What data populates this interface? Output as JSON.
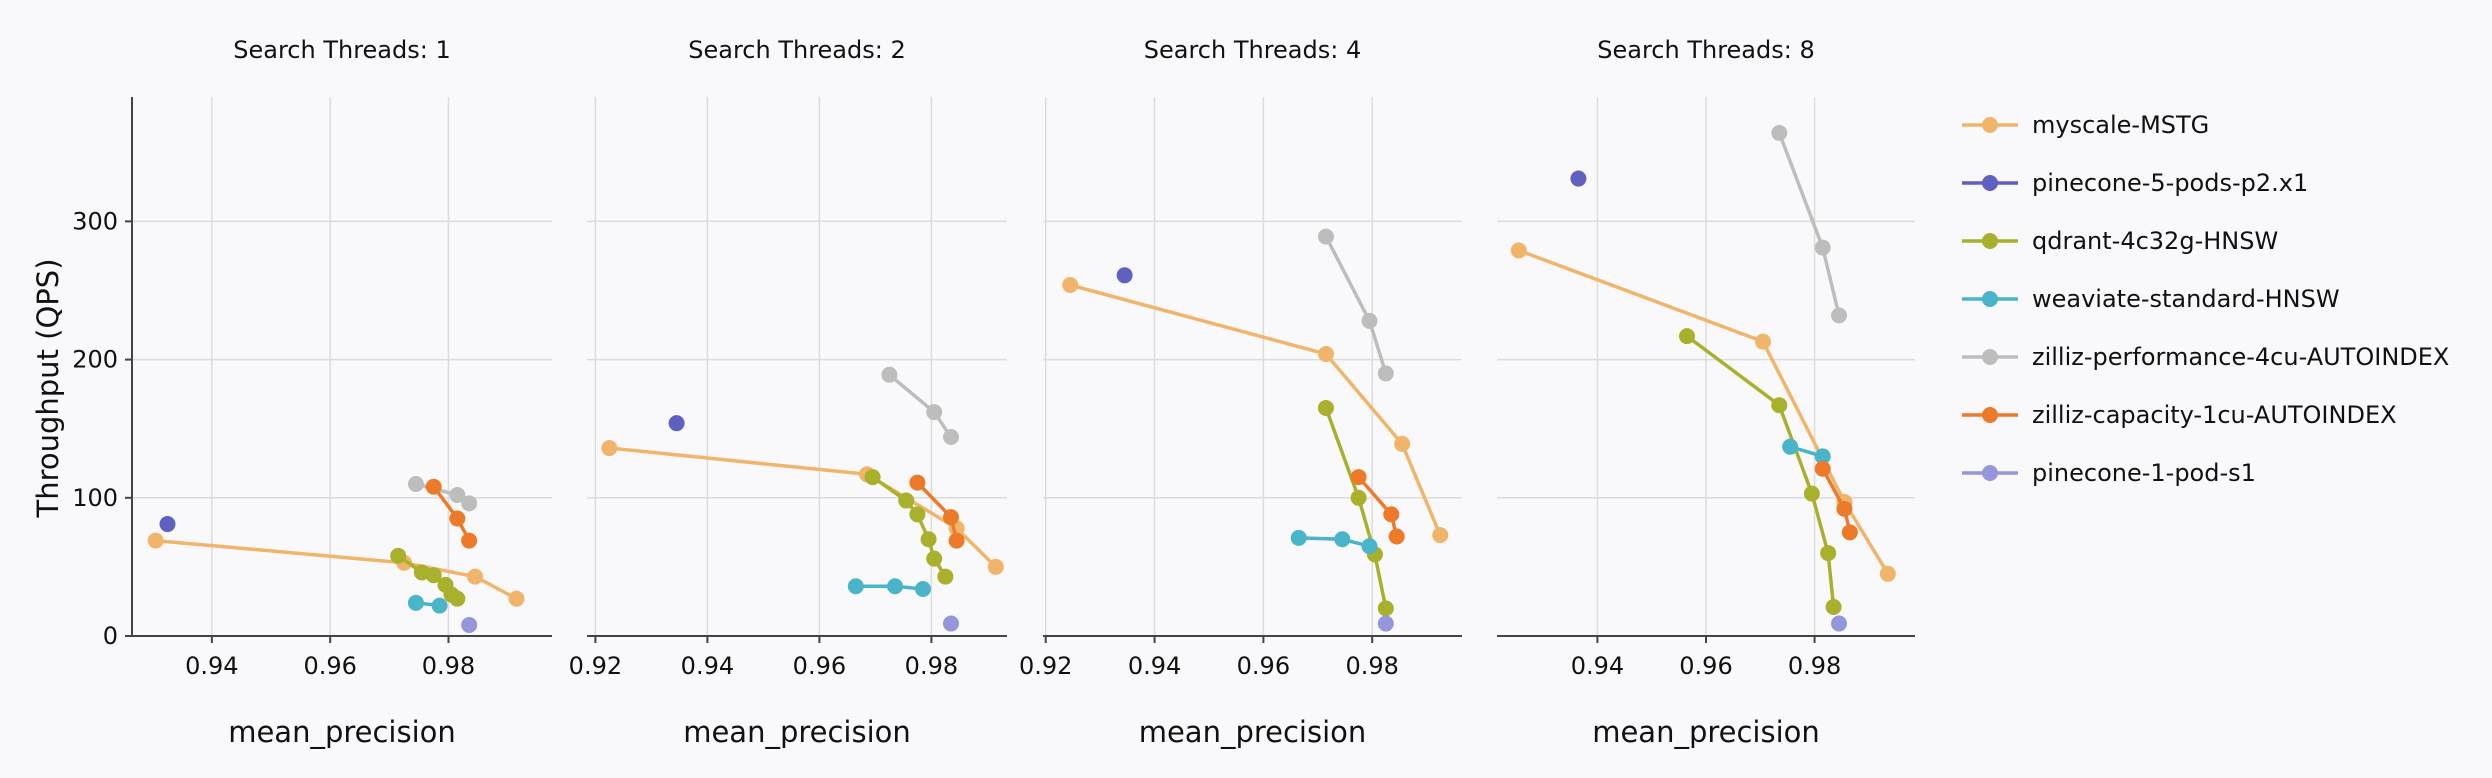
{
  "chart_data": {
    "type": "line",
    "ylabel": "Throughput (QPS)",
    "xlabel": "mean_precision",
    "ylim": [
      0,
      390
    ],
    "yticks": [
      0,
      100,
      200,
      300
    ],
    "legend_position": "right",
    "series_styles": [
      {
        "name": "myscale-MSTG",
        "color": "#f0b56a"
      },
      {
        "name": "pinecone-5-pods-p2.x1",
        "color": "#6060c0"
      },
      {
        "name": "qdrant-4c32g-HNSW",
        "color": "#a8b02c"
      },
      {
        "name": "weaviate-standard-HNSW",
        "color": "#4ab4c8"
      },
      {
        "name": "zilliz-performance-4cu-AUTOINDEX",
        "color": "#bdbdbd"
      },
      {
        "name": "zilliz-capacity-1cu-AUTOINDEX",
        "color": "#ec7a28"
      },
      {
        "name": "pinecone-1-pod-s1",
        "color": "#9696dc"
      }
    ],
    "panels": [
      {
        "title": "Search Threads: 1",
        "xlim": [
          0.9265,
          0.9975
        ],
        "xticks": [
          "0.94",
          "0.96",
          "0.98"
        ],
        "series": [
          {
            "name": "myscale-MSTG",
            "points": [
              [
                0.9305,
                69
              ],
              [
                0.9725,
                53
              ],
              [
                0.9845,
                43
              ],
              [
                0.9915,
                27
              ]
            ]
          },
          {
            "name": "pinecone-5-pods-p2.x1",
            "points": [
              [
                0.9325,
                81
              ]
            ]
          },
          {
            "name": "qdrant-4c32g-HNSW",
            "points": [
              [
                0.9715,
                58
              ],
              [
                0.9755,
                46
              ],
              [
                0.9775,
                44
              ],
              [
                0.9795,
                37
              ],
              [
                0.9805,
                30
              ],
              [
                0.9815,
                27
              ]
            ]
          },
          {
            "name": "weaviate-standard-HNSW",
            "points": [
              [
                0.9745,
                24
              ],
              [
                0.9785,
                22
              ]
            ]
          },
          {
            "name": "zilliz-performance-4cu-AUTOINDEX",
            "points": [
              [
                0.9745,
                110
              ],
              [
                0.9815,
                102
              ],
              [
                0.9835,
                96
              ]
            ]
          },
          {
            "name": "zilliz-capacity-1cu-AUTOINDEX",
            "points": [
              [
                0.9775,
                108
              ],
              [
                0.9815,
                85
              ],
              [
                0.9835,
                69
              ]
            ]
          },
          {
            "name": "pinecone-1-pod-s1",
            "points": [
              [
                0.9835,
                8
              ]
            ]
          }
        ]
      },
      {
        "title": "Search Threads: 2",
        "xlim": [
          0.9185,
          0.9935
        ],
        "xticks": [
          "0.92",
          "0.94",
          "0.96",
          "0.98"
        ],
        "series": [
          {
            "name": "myscale-MSTG",
            "points": [
              [
                0.9225,
                136
              ],
              [
                0.9685,
                117
              ],
              [
                0.9845,
                78
              ],
              [
                0.9915,
                50
              ]
            ]
          },
          {
            "name": "pinecone-5-pods-p2.x1",
            "points": [
              [
                0.9345,
                154
              ]
            ]
          },
          {
            "name": "qdrant-4c32g-HNSW",
            "points": [
              [
                0.9695,
                115
              ],
              [
                0.9755,
                98
              ],
              [
                0.9775,
                88
              ],
              [
                0.9795,
                70
              ],
              [
                0.9805,
                56
              ],
              [
                0.9825,
                43
              ]
            ]
          },
          {
            "name": "weaviate-standard-HNSW",
            "points": [
              [
                0.9665,
                36
              ],
              [
                0.9735,
                36
              ],
              [
                0.9785,
                34
              ]
            ]
          },
          {
            "name": "zilliz-performance-4cu-AUTOINDEX",
            "points": [
              [
                0.9725,
                189
              ],
              [
                0.9805,
                162
              ],
              [
                0.9835,
                144
              ]
            ]
          },
          {
            "name": "zilliz-capacity-1cu-AUTOINDEX",
            "points": [
              [
                0.9775,
                111
              ],
              [
                0.9835,
                86
              ],
              [
                0.9845,
                69
              ]
            ]
          },
          {
            "name": "pinecone-1-pod-s1",
            "points": [
              [
                0.9835,
                9
              ]
            ]
          }
        ]
      },
      {
        "title": "Search Threads: 4",
        "xlim": [
          0.9195,
          0.9965
        ],
        "xticks": [
          "0.92",
          "0.94",
          "0.96",
          "0.98"
        ],
        "series": [
          {
            "name": "myscale-MSTG",
            "points": [
              [
                0.9245,
                254
              ],
              [
                0.9715,
                204
              ],
              [
                0.9855,
                139
              ],
              [
                0.9925,
                73
              ]
            ]
          },
          {
            "name": "pinecone-5-pods-p2.x1",
            "points": [
              [
                0.9345,
                261
              ]
            ]
          },
          {
            "name": "qdrant-4c32g-HNSW",
            "points": [
              [
                0.9715,
                165
              ],
              [
                0.9775,
                100
              ],
              [
                0.9805,
                59
              ],
              [
                0.9825,
                20
              ]
            ]
          },
          {
            "name": "weaviate-standard-HNSW",
            "points": [
              [
                0.9665,
                71
              ],
              [
                0.9745,
                70
              ],
              [
                0.9795,
                65
              ]
            ]
          },
          {
            "name": "zilliz-performance-4cu-AUTOINDEX",
            "points": [
              [
                0.9715,
                289
              ],
              [
                0.9795,
                228
              ],
              [
                0.9825,
                190
              ]
            ]
          },
          {
            "name": "zilliz-capacity-1cu-AUTOINDEX",
            "points": [
              [
                0.9775,
                115
              ],
              [
                0.9835,
                88
              ],
              [
                0.9845,
                72
              ]
            ]
          },
          {
            "name": "pinecone-1-pod-s1",
            "points": [
              [
                0.9825,
                9
              ]
            ]
          }
        ]
      },
      {
        "title": "Search Threads: 8",
        "xlim": [
          0.9215,
          0.9985
        ],
        "xticks": [
          "0.94",
          "0.96",
          "0.98"
        ],
        "series": [
          {
            "name": "myscale-MSTG",
            "points": [
              [
                0.9255,
                279
              ],
              [
                0.9705,
                213
              ],
              [
                0.9855,
                97
              ],
              [
                0.9935,
                45
              ]
            ]
          },
          {
            "name": "pinecone-5-pods-p2.x1",
            "points": [
              [
                0.9365,
                331
              ]
            ]
          },
          {
            "name": "qdrant-4c32g-HNSW",
            "points": [
              [
                0.9565,
                217
              ],
              [
                0.9735,
                167
              ],
              [
                0.9795,
                103
              ],
              [
                0.9825,
                60
              ],
              [
                0.9835,
                21
              ]
            ]
          },
          {
            "name": "weaviate-standard-HNSW",
            "points": [
              [
                0.9755,
                137
              ],
              [
                0.9815,
                130
              ]
            ]
          },
          {
            "name": "zilliz-performance-4cu-AUTOINDEX",
            "points": [
              [
                0.9735,
                364
              ],
              [
                0.9815,
                281
              ],
              [
                0.9845,
                232
              ]
            ]
          },
          {
            "name": "zilliz-capacity-1cu-AUTOINDEX",
            "points": [
              [
                0.9815,
                121
              ],
              [
                0.9855,
                92
              ],
              [
                0.9865,
                75
              ]
            ]
          },
          {
            "name": "pinecone-1-pod-s1",
            "points": [
              [
                0.9845,
                9
              ]
            ]
          }
        ]
      }
    ]
  }
}
